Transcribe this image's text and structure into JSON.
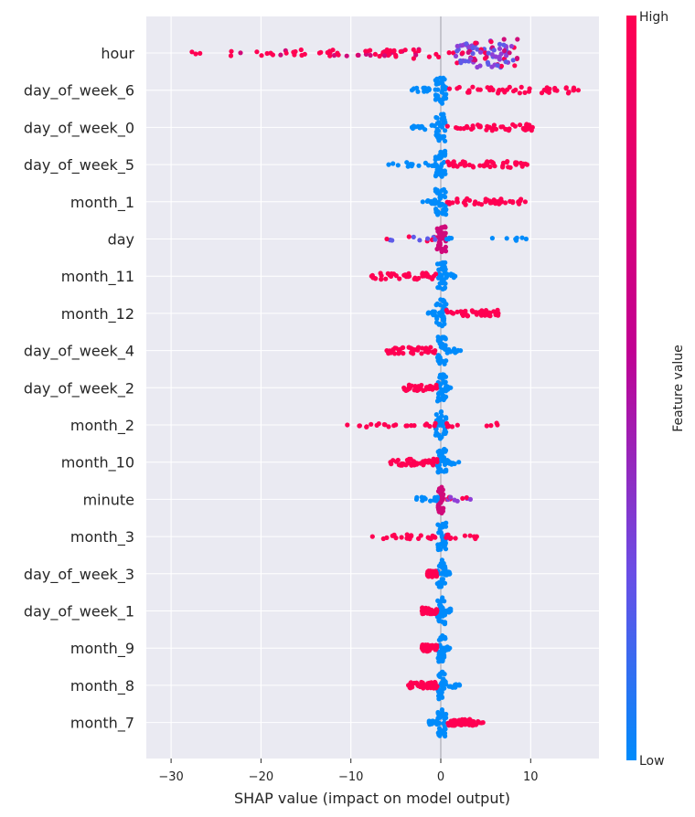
{
  "chart_data": {
    "type": "scatter",
    "subtype": "shap-beeswarm-summary",
    "xlabel": "SHAP value (impact on model output)",
    "xlim": [
      -31,
      17.5
    ],
    "xticks": [
      -30,
      -20,
      -10,
      0,
      10
    ],
    "xtick_labels": [
      "−30",
      "−20",
      "−10",
      "0",
      "10"
    ],
    "grid": true,
    "colorbar": {
      "label": "Feature value",
      "high_label": "High",
      "low_label": "Low",
      "high_color": "#ff0052",
      "low_color": "#008bfb"
    },
    "features": [
      {
        "name": "hour",
        "min": -28.8,
        "max": 8.7,
        "core": [
          1.5,
          8.3
        ],
        "pattern": "hour"
      },
      {
        "name": "day_of_week_6",
        "min": -3.2,
        "max": 15.3,
        "core": [
          -0.6,
          0.6
        ],
        "pattern": "pos"
      },
      {
        "name": "day_of_week_0",
        "min": -3.2,
        "max": 10.2,
        "core": [
          -0.6,
          0.6
        ],
        "pattern": "pos"
      },
      {
        "name": "day_of_week_5",
        "min": -5.8,
        "max": 9.6,
        "core": [
          -0.6,
          0.6
        ],
        "pattern": "pos"
      },
      {
        "name": "month_1",
        "min": -2.0,
        "max": 9.4,
        "core": [
          -0.6,
          0.6
        ],
        "pattern": "pos"
      },
      {
        "name": "day",
        "min": -6.0,
        "max": 9.5,
        "core": [
          -0.6,
          0.6
        ],
        "pattern": "day"
      },
      {
        "name": "month_11",
        "min": -7.7,
        "max": 1.6,
        "core": [
          -0.4,
          0.6
        ],
        "pattern": "neg"
      },
      {
        "name": "month_12",
        "min": -1.4,
        "max": 6.4,
        "core": [
          -0.6,
          0.6
        ],
        "pattern": "pos"
      },
      {
        "name": "day_of_week_4",
        "min": -6.0,
        "max": 2.2,
        "core": [
          -0.4,
          0.6
        ],
        "pattern": "neg"
      },
      {
        "name": "day_of_week_2",
        "min": -4.1,
        "max": 1.1,
        "core": [
          -0.4,
          0.6
        ],
        "pattern": "neg"
      },
      {
        "name": "month_2",
        "min": -10.4,
        "max": 6.3,
        "core": [
          -0.6,
          0.6
        ],
        "pattern": "mixed"
      },
      {
        "name": "month_10",
        "min": -5.6,
        "max": 2.0,
        "core": [
          -0.4,
          0.6
        ],
        "pattern": "neg"
      },
      {
        "name": "minute",
        "min": -2.7,
        "max": 3.3,
        "core": [
          -0.3,
          0.3
        ],
        "pattern": "minute"
      },
      {
        "name": "month_3",
        "min": -7.6,
        "max": 4.0,
        "core": [
          -0.4,
          0.6
        ],
        "pattern": "mixed"
      },
      {
        "name": "day_of_week_3",
        "min": -1.5,
        "max": 1.0,
        "core": [
          -0.4,
          0.5
        ],
        "pattern": "neg"
      },
      {
        "name": "day_of_week_1",
        "min": -2.1,
        "max": 1.1,
        "core": [
          -0.4,
          0.5
        ],
        "pattern": "neg"
      },
      {
        "name": "month_9",
        "min": -2.1,
        "max": 1.0,
        "core": [
          -0.4,
          0.5
        ],
        "pattern": "neg"
      },
      {
        "name": "month_8",
        "min": -3.6,
        "max": 2.1,
        "core": [
          -0.4,
          0.6
        ],
        "pattern": "neg"
      },
      {
        "name": "month_7",
        "min": -1.3,
        "max": 4.7,
        "core": [
          -0.4,
          0.6
        ],
        "pattern": "pos"
      }
    ]
  }
}
